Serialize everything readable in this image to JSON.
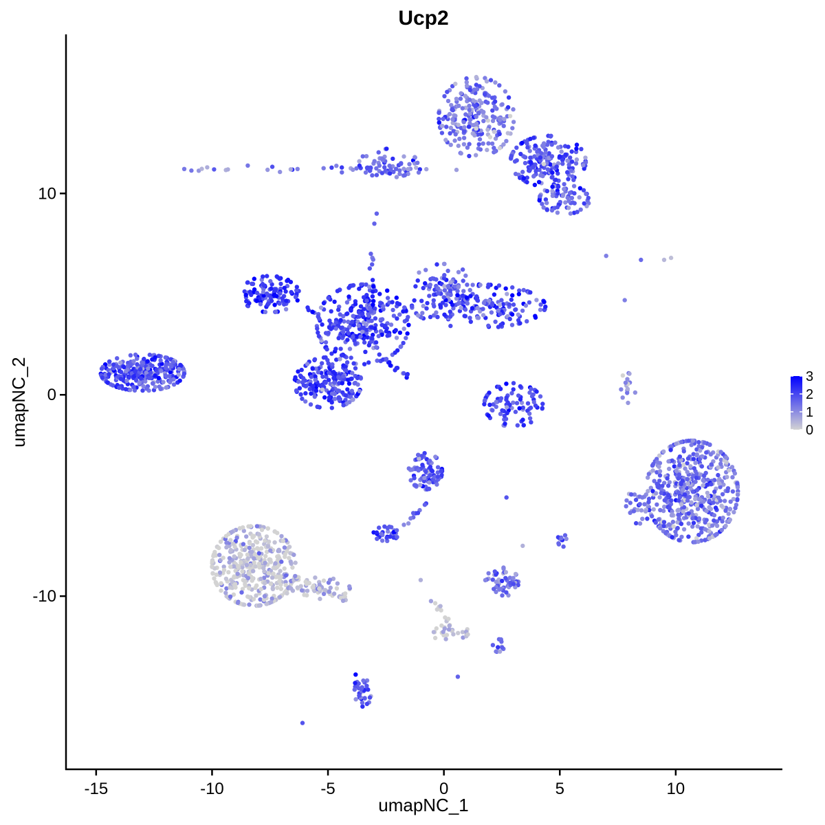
{
  "chart_data": {
    "type": "scatter",
    "title": "Ucp2",
    "xlabel": "umapNC_1",
    "ylabel": "umapNC_2",
    "xlim": [
      -16.3,
      14.6
    ],
    "ylim": [
      -18.6,
      17.9
    ],
    "x_ticks": [
      -15,
      -10,
      -5,
      0,
      5,
      10
    ],
    "x_tick_labels": [
      "-15",
      "-10",
      "-5",
      "0",
      "5",
      "10"
    ],
    "y_ticks": [
      -10,
      0,
      10
    ],
    "y_tick_labels": [
      "-10",
      "0",
      "10"
    ],
    "grid": false,
    "legend": {
      "position": "right",
      "type": "colorbar",
      "min": 0,
      "max": 3,
      "ticks": [
        0,
        1,
        2,
        3
      ],
      "tick_labels": [
        "0",
        "1",
        "2",
        "3"
      ],
      "low_color": "#d3d3d3",
      "high_color": "#0000ff"
    },
    "clusters": [
      {
        "cx": 1.4,
        "cy": 13.8,
        "sx": 0.9,
        "sy": 1.1,
        "n": 230,
        "expr": 1.3
      },
      {
        "cx": 4.5,
        "cy": 11.6,
        "sx": 0.9,
        "sy": 0.7,
        "n": 180,
        "expr": 1.8
      },
      {
        "cx": 5.2,
        "cy": 9.7,
        "sx": 0.6,
        "sy": 0.4,
        "n": 70,
        "expr": 1.6
      },
      {
        "cx": -2.4,
        "cy": 11.5,
        "sx": 0.7,
        "sy": 0.4,
        "n": 60,
        "expr": 1.5
      },
      {
        "cx": -13.0,
        "cy": 1.1,
        "sx": 1.0,
        "sy": 0.5,
        "n": 300,
        "expr": 1.9
      },
      {
        "cx": -7.5,
        "cy": 5.0,
        "sx": 0.7,
        "sy": 0.5,
        "n": 110,
        "expr": 2.2
      },
      {
        "cx": -3.5,
        "cy": 3.5,
        "sx": 1.1,
        "sy": 1.1,
        "n": 260,
        "expr": 2.1
      },
      {
        "cx": -5.0,
        "cy": 0.6,
        "sx": 0.8,
        "sy": 0.7,
        "n": 200,
        "expr": 2.0
      },
      {
        "cx": 1.5,
        "cy": 4.4,
        "sx": 1.6,
        "sy": 0.6,
        "n": 200,
        "expr": 1.9
      },
      {
        "cx": 0.0,
        "cy": 5.6,
        "sx": 0.7,
        "sy": 0.5,
        "n": 60,
        "expr": 1.8
      },
      {
        "cx": 3.0,
        "cy": -0.5,
        "sx": 0.7,
        "sy": 0.6,
        "n": 90,
        "expr": 2.0
      },
      {
        "cx": 10.7,
        "cy": -4.8,
        "sx": 1.1,
        "sy": 1.4,
        "n": 500,
        "expr": 1.3
      },
      {
        "cx": 8.4,
        "cy": -5.5,
        "sx": 0.3,
        "sy": 0.5,
        "n": 30,
        "expr": 1.3
      },
      {
        "cx": -8.2,
        "cy": -8.5,
        "sx": 1.0,
        "sy": 1.1,
        "n": 400,
        "expr": 0.2
      },
      {
        "cx": -5.5,
        "cy": -9.6,
        "sx": 0.8,
        "sy": 0.3,
        "n": 50,
        "expr": 0.4
      },
      {
        "cx": -0.8,
        "cy": -3.8,
        "sx": 0.4,
        "sy": 0.5,
        "n": 90,
        "expr": 1.7
      },
      {
        "cx": -2.5,
        "cy": -6.9,
        "sx": 0.3,
        "sy": 0.2,
        "n": 30,
        "expr": 1.8
      },
      {
        "cx": 2.5,
        "cy": -9.3,
        "sx": 0.4,
        "sy": 0.4,
        "n": 50,
        "expr": 1.5
      },
      {
        "cx": -3.5,
        "cy": -14.8,
        "sx": 0.2,
        "sy": 0.4,
        "n": 25,
        "expr": 1.9
      },
      {
        "cx": 0.2,
        "cy": -11.8,
        "sx": 0.5,
        "sy": 0.2,
        "n": 25,
        "expr": 0.1
      },
      {
        "cx": 5.1,
        "cy": -7.2,
        "sx": 0.1,
        "sy": 0.2,
        "n": 12,
        "expr": 1.8
      },
      {
        "cx": 2.4,
        "cy": -12.5,
        "sx": 0.2,
        "sy": 0.2,
        "n": 12,
        "expr": 1.6
      },
      {
        "cx": 8.0,
        "cy": 0.4,
        "sx": 0.2,
        "sy": 0.5,
        "n": 15,
        "expr": 0.7
      }
    ],
    "filaments": [
      {
        "from": [
          -11.5,
          11.2
        ],
        "to": [
          0.5,
          11.2
        ],
        "n": 35,
        "expr": 1.3
      },
      {
        "from": [
          -3.2,
          2.8
        ],
        "to": [
          -3.0,
          7.0
        ],
        "n": 25,
        "expr": 1.9
      },
      {
        "from": [
          -2.8,
          2.0
        ],
        "to": [
          -1.3,
          0.6
        ],
        "n": 18,
        "expr": 2.0
      },
      {
        "from": [
          -3.6,
          2.5
        ],
        "to": [
          -6.5,
          4.8
        ],
        "n": 25,
        "expr": 2.0
      },
      {
        "from": [
          -0.6,
          -5.2
        ],
        "to": [
          -1.8,
          -6.5
        ],
        "n": 10,
        "expr": 1.5
      },
      {
        "from": [
          -0.5,
          -10.2
        ],
        "to": [
          0.6,
          -12.2
        ],
        "n": 12,
        "expr": 0.1
      },
      {
        "from": [
          -7.0,
          -8.8
        ],
        "to": [
          -4.0,
          -10.3
        ],
        "n": 30,
        "expr": 0.3
      },
      {
        "from": [
          -3.8,
          -13.6
        ],
        "to": [
          -3.4,
          -15.5
        ],
        "n": 10,
        "expr": 1.8
      }
    ],
    "scattered_points": [
      {
        "x": -6.1,
        "y": -16.3,
        "expr": 1.8
      },
      {
        "x": 0.6,
        "y": -14.0,
        "expr": 1.6
      },
      {
        "x": 7.0,
        "y": 6.9,
        "expr": 1.2
      },
      {
        "x": 8.5,
        "y": 6.7,
        "expr": 1.5
      },
      {
        "x": 9.8,
        "y": 6.8,
        "expr": 0.3
      },
      {
        "x": 9.5,
        "y": 6.7,
        "expr": 0.4
      },
      {
        "x": 7.8,
        "y": 4.7,
        "expr": 1.2
      },
      {
        "x": -3.0,
        "y": 8.5,
        "expr": 1.6
      },
      {
        "x": -2.9,
        "y": 9.0,
        "expr": 1.6
      },
      {
        "x": 2.7,
        "y": -5.1,
        "expr": 1.8
      },
      {
        "x": 3.4,
        "y": -7.5,
        "expr": 0.5
      },
      {
        "x": -1.0,
        "y": -9.2,
        "expr": 0.5
      }
    ]
  }
}
